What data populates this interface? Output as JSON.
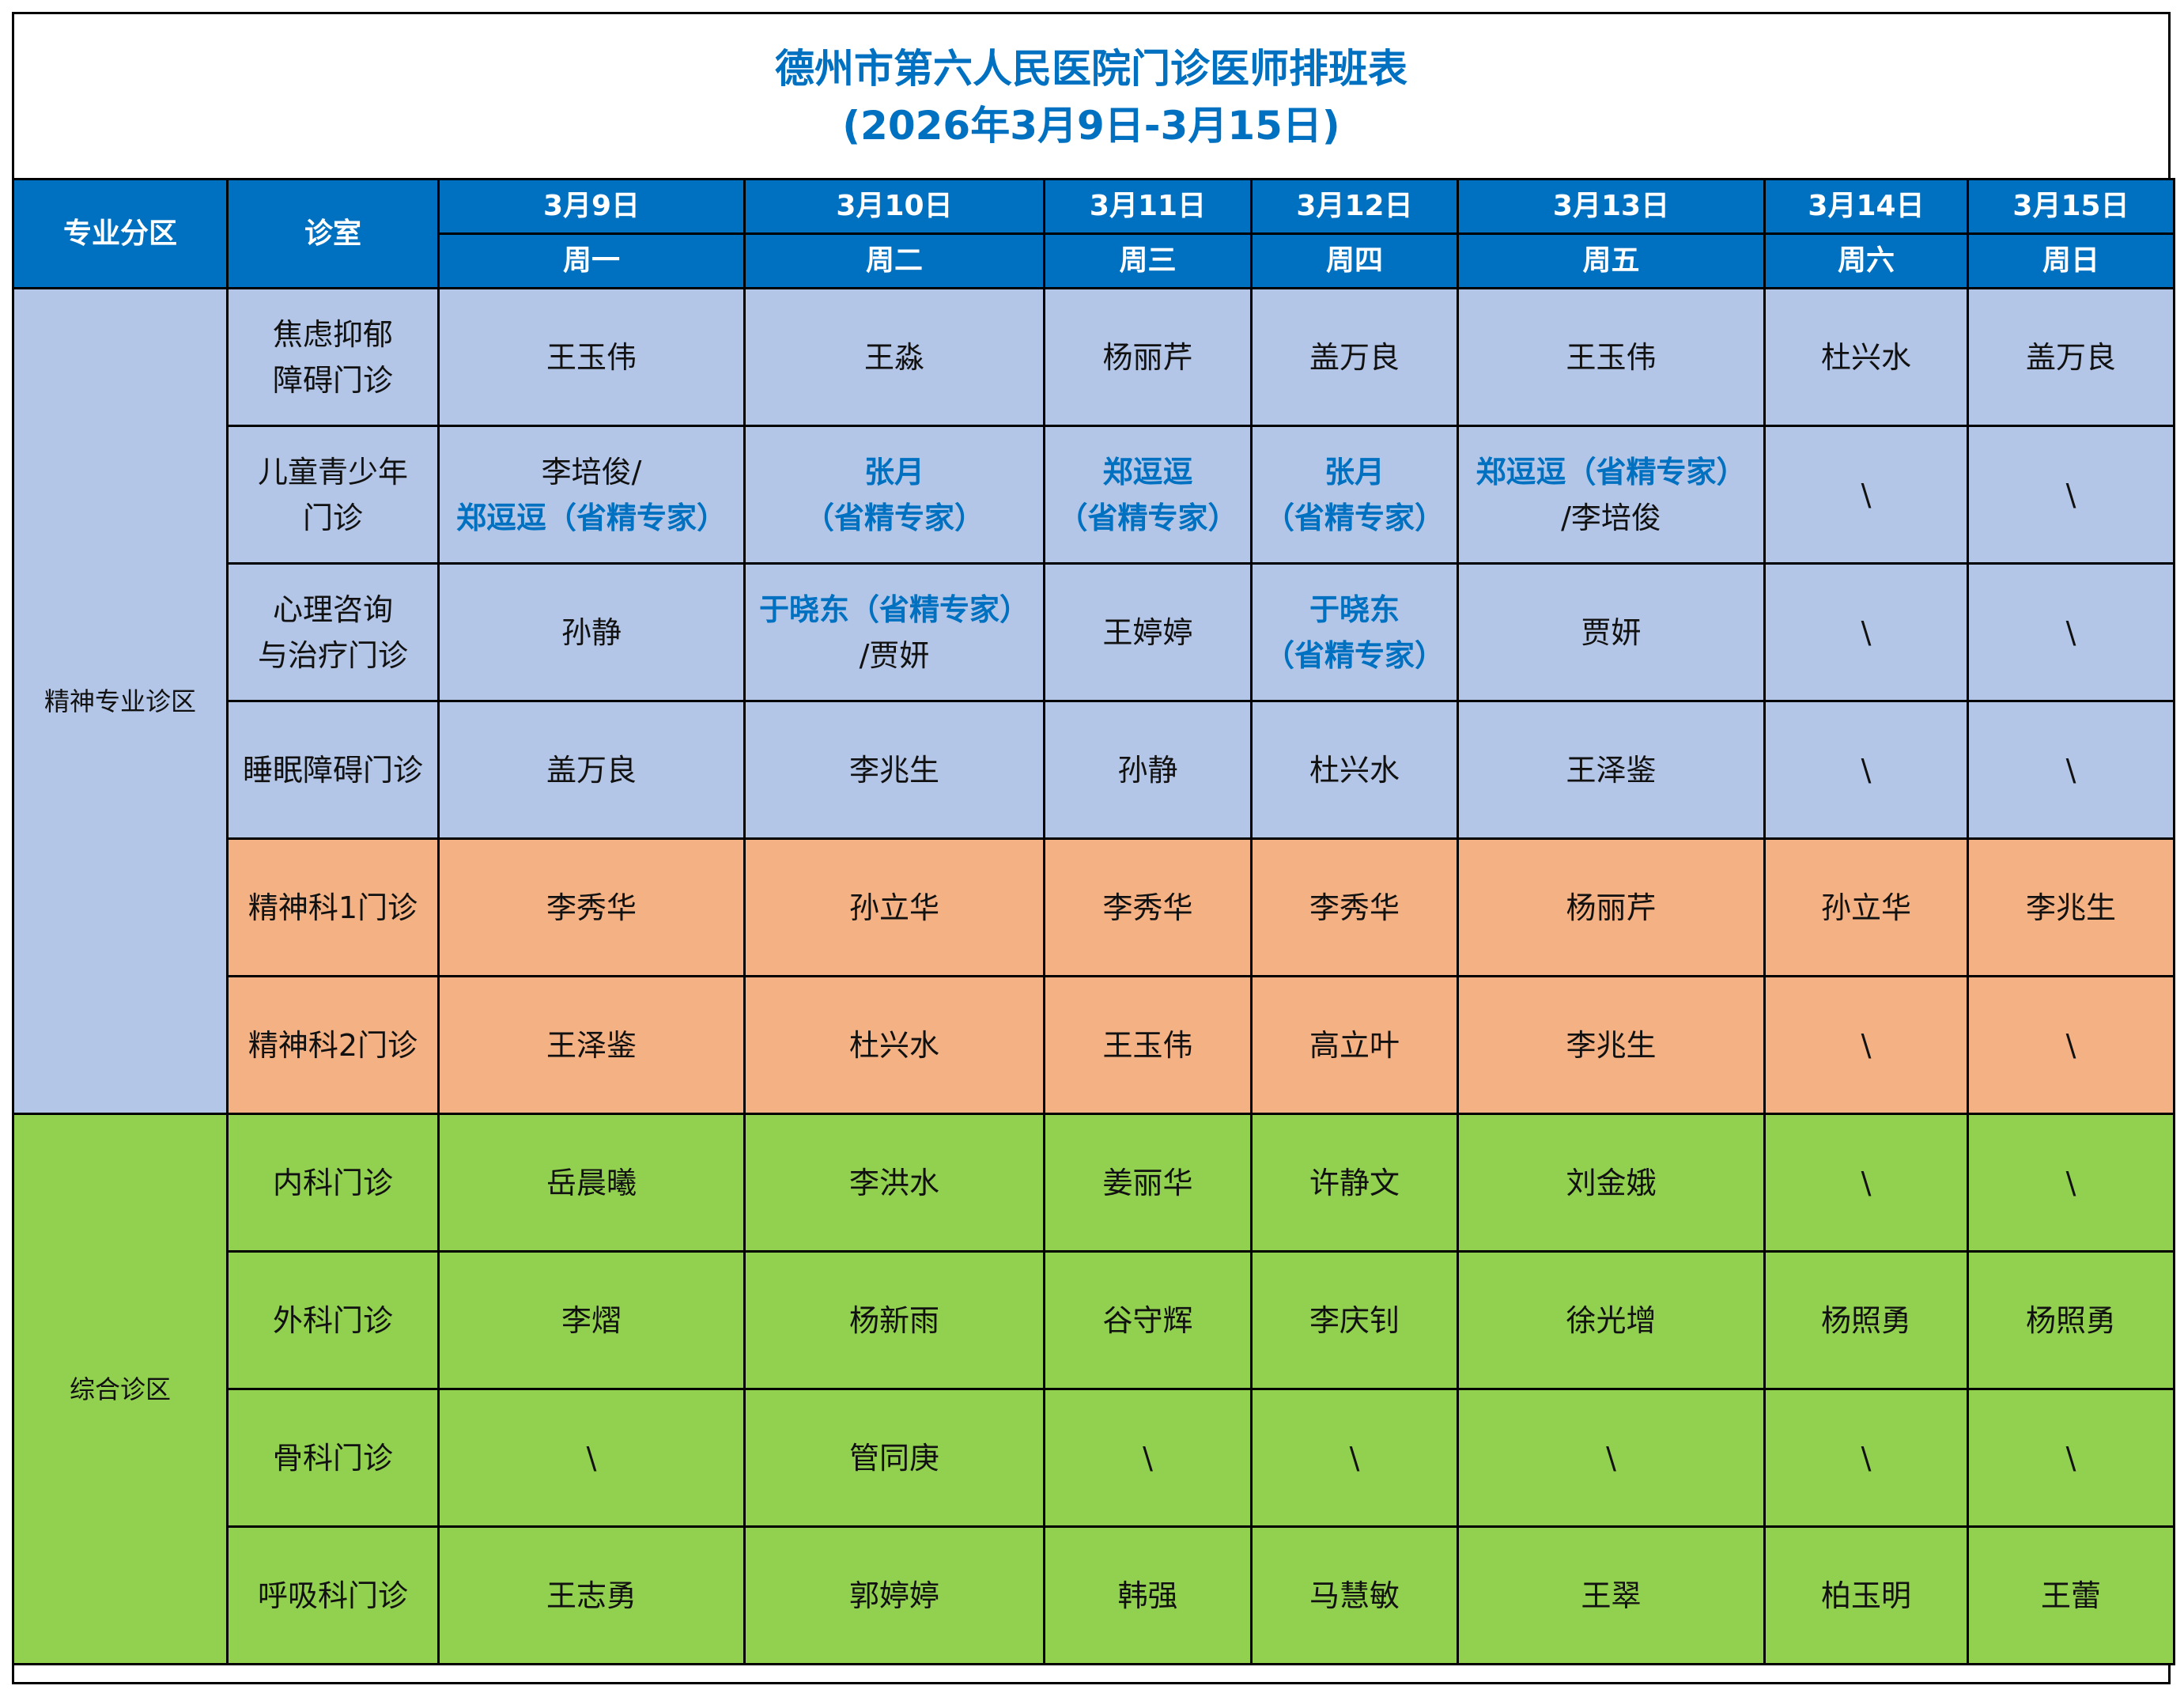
{
  "title": {
    "line1": "德州市第六人民医院门诊医师排班表",
    "line2": "(2026年3月9日-3月15日)"
  },
  "header": {
    "zone": "专业分区",
    "room": "诊室",
    "dates": [
      "3月9日",
      "3月10日",
      "3月11日",
      "3月12日",
      "3月13日",
      "3月14日",
      "3月15日"
    ],
    "weekdays": [
      "周一",
      "周二",
      "周三",
      "周四",
      "周五",
      "周六",
      "周日"
    ]
  },
  "colors": {
    "header_bg": "#0070C0",
    "title_text": "#0070C0",
    "expert_text": "#0070C0",
    "zone_psych_bg": "#B4C6E7",
    "psych_dept_bg": "#F4B183",
    "general_bg": "#92D050"
  },
  "zones": [
    {
      "name": "精神专业诊区"
    },
    {
      "name": "综合诊区"
    }
  ],
  "rows": [
    {
      "room": [
        "焦虑抑郁",
        "障碍门诊"
      ],
      "cells": [
        [
          {
            "t": "王玉伟"
          }
        ],
        [
          {
            "t": "王淼"
          }
        ],
        [
          {
            "t": "杨丽芹"
          }
        ],
        [
          {
            "t": "盖万良"
          }
        ],
        [
          {
            "t": "王玉伟"
          }
        ],
        [
          {
            "t": "杜兴水"
          }
        ],
        [
          {
            "t": "盖万良"
          }
        ]
      ]
    },
    {
      "room": [
        "儿童青少年",
        "门诊"
      ],
      "cells": [
        [
          {
            "t": "李培俊/"
          },
          {
            "t": "郑逗逗（省精专家）",
            "expert": true
          }
        ],
        [
          {
            "t": "张月",
            "expert": true
          },
          {
            "t": "（省精专家）",
            "expert": true
          }
        ],
        [
          {
            "t": "郑逗逗",
            "expert": true
          },
          {
            "t": "（省精专家）",
            "expert": true
          }
        ],
        [
          {
            "t": "张月",
            "expert": true
          },
          {
            "t": "（省精专家）",
            "expert": true
          }
        ],
        [
          {
            "t": "郑逗逗（省精专家）",
            "expert": true
          },
          {
            "t": "/李培俊"
          }
        ],
        [
          {
            "t": "\\"
          }
        ],
        [
          {
            "t": "\\"
          }
        ]
      ]
    },
    {
      "room": [
        "心理咨询",
        "与治疗门诊"
      ],
      "cells": [
        [
          {
            "t": "孙静"
          }
        ],
        [
          {
            "t": "于晓东（省精专家）",
            "expert": true
          },
          {
            "t": "/贾妍"
          }
        ],
        [
          {
            "t": "王婷婷"
          }
        ],
        [
          {
            "t": "于晓东",
            "expert": true
          },
          {
            "t": "（省精专家）",
            "expert": true
          }
        ],
        [
          {
            "t": "贾妍"
          }
        ],
        [
          {
            "t": "\\"
          }
        ],
        [
          {
            "t": "\\"
          }
        ]
      ]
    },
    {
      "room": [
        "睡眠障碍门诊"
      ],
      "cells": [
        [
          {
            "t": "盖万良"
          }
        ],
        [
          {
            "t": "李兆生"
          }
        ],
        [
          {
            "t": "孙静"
          }
        ],
        [
          {
            "t": "杜兴水"
          }
        ],
        [
          {
            "t": "王泽鉴"
          }
        ],
        [
          {
            "t": "\\"
          }
        ],
        [
          {
            "t": "\\"
          }
        ]
      ]
    },
    {
      "room": [
        "精神科1门诊"
      ],
      "cells": [
        [
          {
            "t": "李秀华"
          }
        ],
        [
          {
            "t": "孙立华"
          }
        ],
        [
          {
            "t": "李秀华"
          }
        ],
        [
          {
            "t": "李秀华"
          }
        ],
        [
          {
            "t": "杨丽芹"
          }
        ],
        [
          {
            "t": "孙立华"
          }
        ],
        [
          {
            "t": "李兆生"
          }
        ]
      ]
    },
    {
      "room": [
        "精神科2门诊"
      ],
      "cells": [
        [
          {
            "t": "王泽鉴"
          }
        ],
        [
          {
            "t": "杜兴水"
          }
        ],
        [
          {
            "t": "王玉伟"
          }
        ],
        [
          {
            "t": "高立叶"
          }
        ],
        [
          {
            "t": "李兆生"
          }
        ],
        [
          {
            "t": "\\"
          }
        ],
        [
          {
            "t": "\\"
          }
        ]
      ]
    },
    {
      "room": [
        "内科门诊"
      ],
      "cells": [
        [
          {
            "t": "岳晨曦"
          }
        ],
        [
          {
            "t": "李洪水"
          }
        ],
        [
          {
            "t": "姜丽华"
          }
        ],
        [
          {
            "t": "许静文"
          }
        ],
        [
          {
            "t": "刘金娥"
          }
        ],
        [
          {
            "t": "\\"
          }
        ],
        [
          {
            "t": "\\"
          }
        ]
      ]
    },
    {
      "room": [
        "外科门诊"
      ],
      "cells": [
        [
          {
            "t": "李熠"
          }
        ],
        [
          {
            "t": "杨新雨"
          }
        ],
        [
          {
            "t": "谷守辉"
          }
        ],
        [
          {
            "t": "李庆钊"
          }
        ],
        [
          {
            "t": "徐光增"
          }
        ],
        [
          {
            "t": "杨照勇"
          }
        ],
        [
          {
            "t": "杨照勇"
          }
        ]
      ]
    },
    {
      "room": [
        "骨科门诊"
      ],
      "cells": [
        [
          {
            "t": "\\"
          }
        ],
        [
          {
            "t": "管同庚"
          }
        ],
        [
          {
            "t": "\\"
          }
        ],
        [
          {
            "t": "\\"
          }
        ],
        [
          {
            "t": "\\"
          }
        ],
        [
          {
            "t": "\\"
          }
        ],
        [
          {
            "t": "\\"
          }
        ]
      ]
    },
    {
      "room": [
        "呼吸科门诊"
      ],
      "cells": [
        [
          {
            "t": "王志勇"
          }
        ],
        [
          {
            "t": "郭婷婷"
          }
        ],
        [
          {
            "t": "韩强"
          }
        ],
        [
          {
            "t": "马慧敏"
          }
        ],
        [
          {
            "t": "王翠"
          }
        ],
        [
          {
            "t": "柏玉明"
          }
        ],
        [
          {
            "t": "王蕾"
          }
        ]
      ]
    }
  ]
}
